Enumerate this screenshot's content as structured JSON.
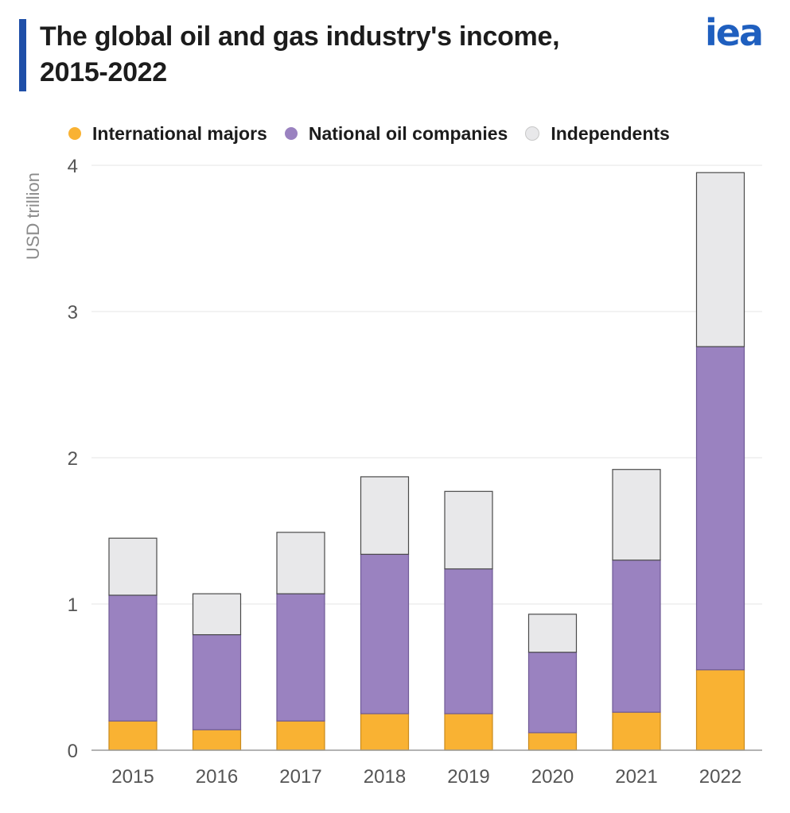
{
  "header": {
    "title_line1": "The global oil and gas industry's income,",
    "title_line2": "2015-2022",
    "logo_text": "iea",
    "accent_color": "#1f4fa8",
    "logo_color": "#1f5fbf"
  },
  "legend": [
    {
      "label": "International majors",
      "color": "#f9b233"
    },
    {
      "label": "National oil companies",
      "color": "#9a82c0"
    },
    {
      "label": "Independents",
      "color": "#e8e8ea"
    }
  ],
  "chart_data": {
    "type": "bar",
    "stacked": true,
    "title": "The global oil and gas industry's income, 2015-2022",
    "xlabel": "",
    "ylabel": "USD trillion",
    "ylim": [
      0,
      4
    ],
    "yticks": [
      0,
      1,
      2,
      3,
      4
    ],
    "grid": true,
    "legend_position": "top",
    "categories": [
      "2015",
      "2016",
      "2017",
      "2018",
      "2019",
      "2020",
      "2021",
      "2022"
    ],
    "series": [
      {
        "name": "International majors",
        "color": "#f9b233",
        "values": [
          0.2,
          0.14,
          0.2,
          0.25,
          0.25,
          0.12,
          0.26,
          0.55
        ]
      },
      {
        "name": "National oil companies",
        "color": "#9a82c0",
        "values": [
          0.86,
          0.65,
          0.87,
          1.09,
          0.99,
          0.55,
          1.04,
          2.21
        ]
      },
      {
        "name": "Independents",
        "color": "#e8e8ea",
        "values": [
          0.39,
          0.28,
          0.42,
          0.53,
          0.53,
          0.26,
          0.62,
          1.19
        ]
      }
    ]
  }
}
